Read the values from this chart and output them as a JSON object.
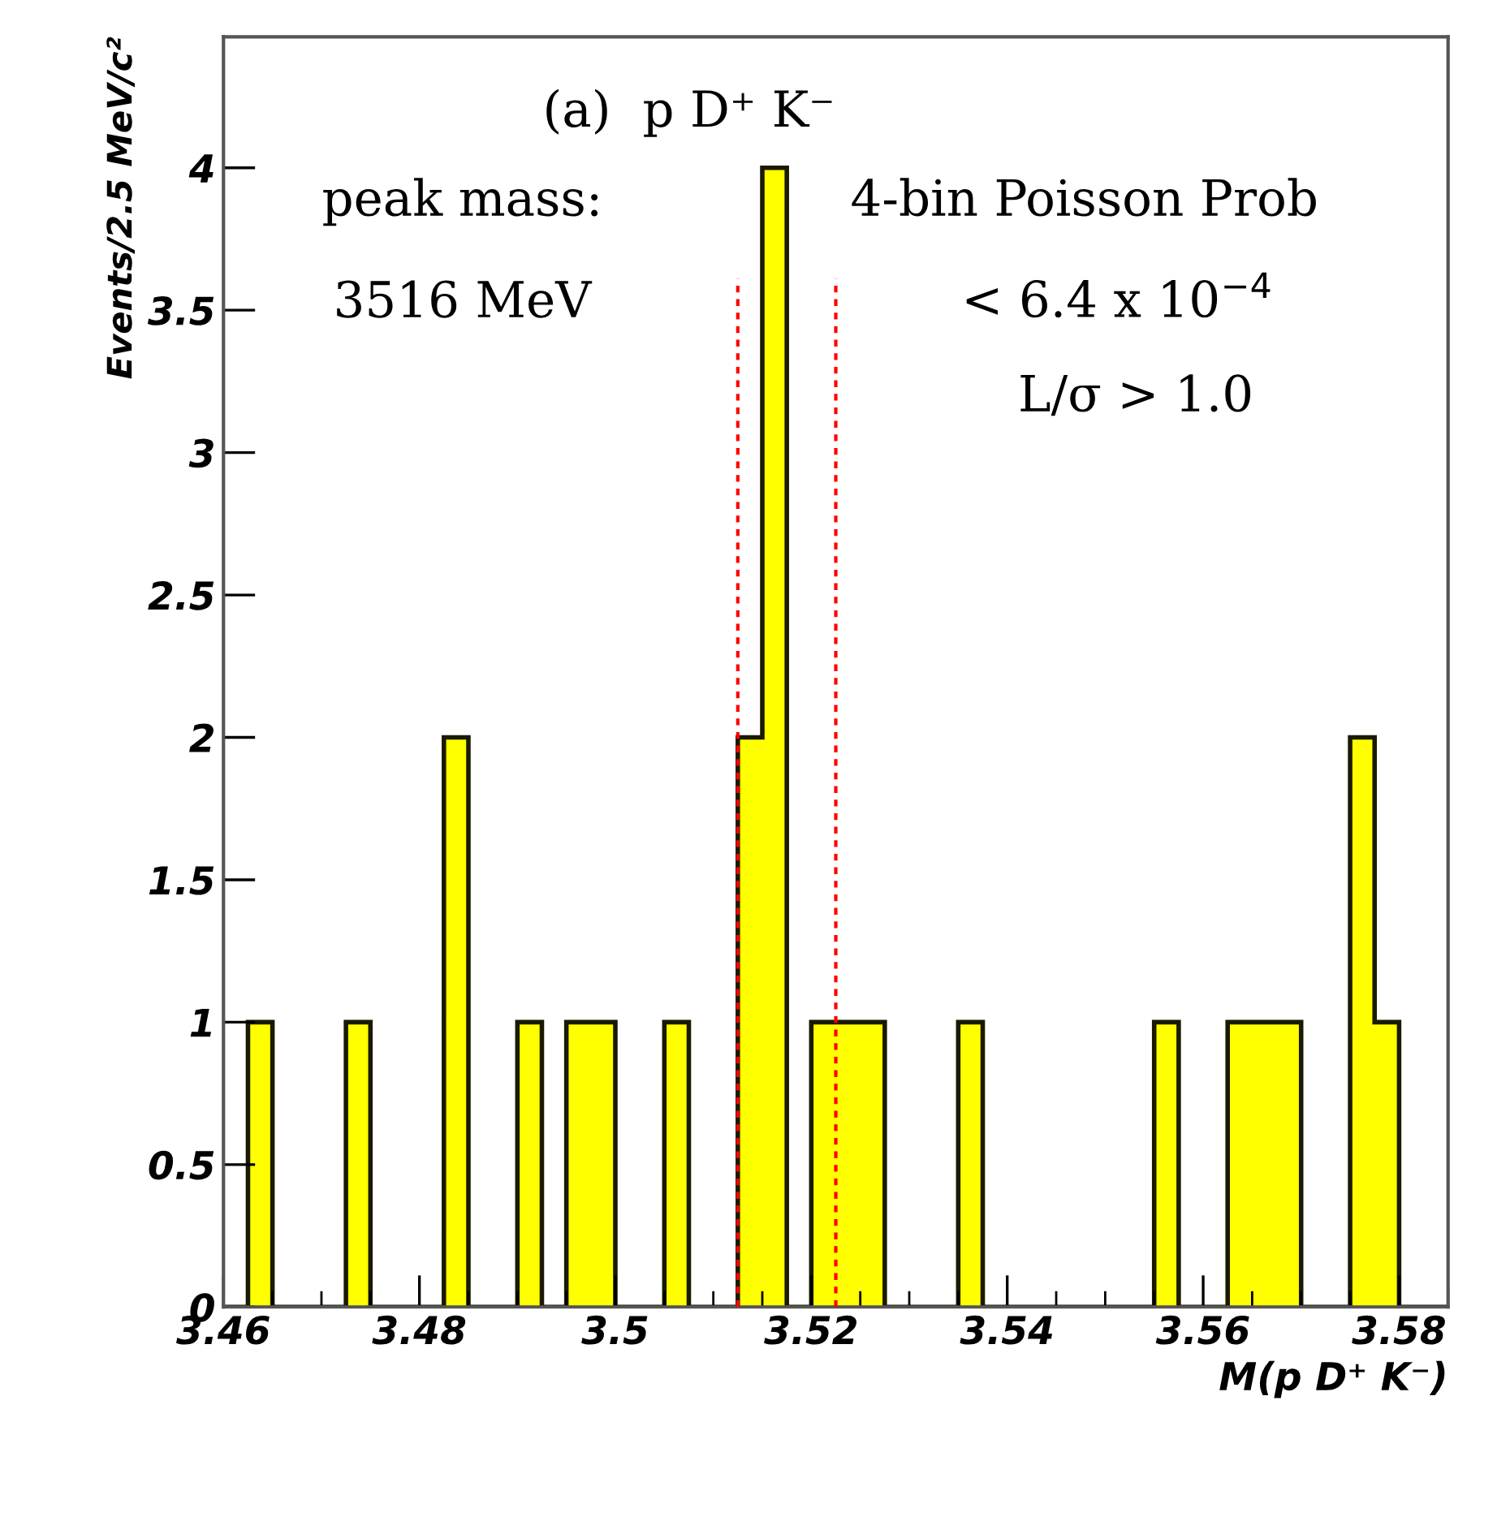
{
  "chart_data": {
    "type": "histogram",
    "title": "(a)  p D⁺ K⁻",
    "xlabel": "M(p D⁺ K⁻)",
    "ylabel": "Events/2.5 MeV/c²",
    "bins": [
      3.46,
      3.4625,
      3.465,
      3.4675,
      3.47,
      3.4725,
      3.475,
      3.4775,
      3.48,
      3.4825,
      3.485,
      3.4875,
      3.49,
      3.4925,
      3.495,
      3.4975,
      3.5,
      3.5025,
      3.505,
      3.5075,
      3.51,
      3.5125,
      3.515,
      3.5175,
      3.52,
      3.5225,
      3.525,
      3.5275,
      3.53,
      3.5325,
      3.535,
      3.5375,
      3.54,
      3.5425,
      3.545,
      3.5475,
      3.55,
      3.5525,
      3.555,
      3.5575,
      3.56,
      3.5625,
      3.565,
      3.5675,
      3.57,
      3.5725,
      3.575,
      3.5775,
      3.58,
      3.5825,
      3.585
    ],
    "values": [
      0,
      1,
      0,
      0,
      0,
      1,
      0,
      0,
      0,
      2,
      0,
      0,
      1,
      0,
      1,
      1,
      0,
      0,
      1,
      0,
      0,
      2,
      4,
      0,
      1,
      1,
      1,
      0,
      0,
      0,
      1,
      0,
      0,
      0,
      0,
      0,
      0,
      0,
      1,
      0,
      0,
      1,
      1,
      1,
      0,
      0,
      2,
      1,
      0,
      0
    ],
    "color": "#ffff00",
    "xlim": [
      3.46,
      3.585
    ],
    "xticks": [
      3.46,
      3.48,
      {
        "value": 3.5,
        "label": "3.5"
      },
      3.52,
      3.54,
      3.56,
      3.58
    ],
    "ylim": [
      0,
      4.46
    ],
    "yticks": [
      0,
      0.5,
      {
        "value": 1,
        "label": "1"
      },
      1.5,
      {
        "value": 2,
        "label": "2"
      },
      2.5,
      {
        "value": 3,
        "label": "3"
      },
      3.5,
      {
        "value": 4,
        "label": "4"
      }
    ],
    "grid": false,
    "ref_lines": [
      {
        "axis": "x",
        "value": 3.5125,
        "color": "#ff0000",
        "line_style": "dotted"
      },
      {
        "axis": "x",
        "value": 3.5225,
        "color": "#ff0000",
        "line_style": "dotted"
      }
    ],
    "annotations": [
      "peak mass:",
      "3516 MeV",
      "4-bin Poisson Prob",
      "< 6.4 x 10$^{−4}$",
      "L/σ > 1.0"
    ]
  }
}
